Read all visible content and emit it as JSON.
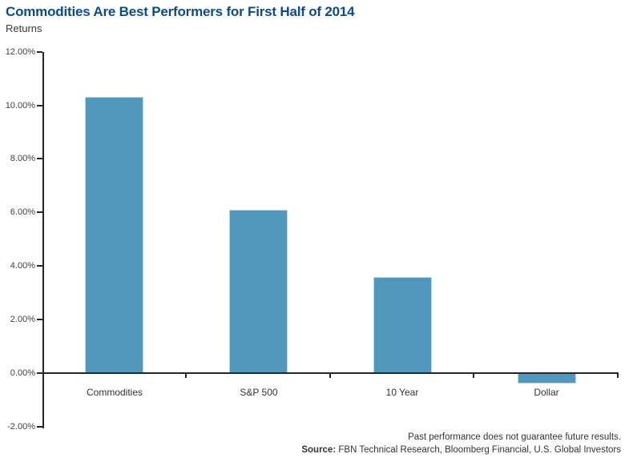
{
  "title": "Commodities Are Best Performers for First Half of 2014",
  "subtitle": "Returns",
  "footer": {
    "disclaimer": "Past performance does not guarantee future results.",
    "source_label": "Source:",
    "source_text": " FBN Technical Research, Bloomberg Financial, U.S. Global Investors"
  },
  "colors": {
    "title": "#0d4b87",
    "bar_fill": "#5099bc",
    "bar_border": "#bcd7e5",
    "axis": "#262626",
    "tick_text": "#404040",
    "body_text": "#333333"
  },
  "chart_data": {
    "type": "bar",
    "title": "Commodities Are Best Performers for First Half of 2014",
    "ylabel": "Returns",
    "categories": [
      "Commodities",
      "S&P 500",
      "10 Year",
      "Dollar"
    ],
    "values": [
      10.3,
      6.1,
      3.6,
      -0.4
    ],
    "ylim": [
      -2,
      12
    ],
    "ytick_step": 2,
    "ytick_labels": [
      "12.00%",
      "10.00%",
      "8.00%",
      "6.00%",
      "4.00%",
      "2.00%",
      "0.00%",
      "-2.00%"
    ],
    "grid": false,
    "legend_position": "none",
    "bar_orientation": "vertical"
  }
}
